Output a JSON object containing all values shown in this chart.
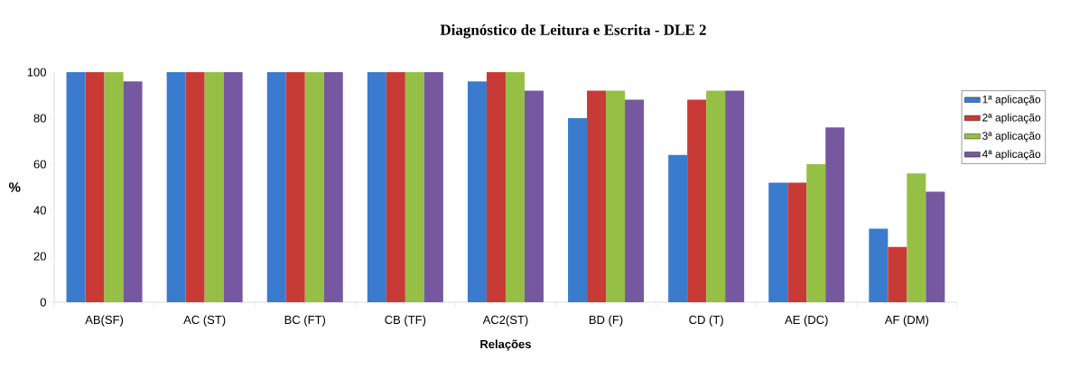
{
  "chart_data": {
    "type": "bar",
    "title": "Diagnóstico de Leitura e Escrita - DLE 2",
    "xlabel": "Relações",
    "ylabel": "%",
    "categories": [
      "AB(SF)",
      "AC (ST)",
      "BC (FT)",
      "CB (TF)",
      "AC2(ST)",
      "BD (F)",
      "CD (T)",
      "AE (DC)",
      "AF (DM)"
    ],
    "series": [
      {
        "name": "1ª aplicação",
        "color": "#3a7bcd",
        "values": [
          100,
          100,
          100,
          100,
          96,
          80,
          64,
          52,
          32
        ]
      },
      {
        "name": "2ª aplicação",
        "color": "#c83a36",
        "values": [
          100,
          100,
          100,
          100,
          100,
          92,
          88,
          52,
          24
        ]
      },
      {
        "name": "3ª aplicação",
        "color": "#95bf45",
        "values": [
          100,
          100,
          100,
          100,
          100,
          92,
          92,
          60,
          56
        ]
      },
      {
        "name": "4ª aplicação",
        "color": "#7558a0",
        "values": [
          96,
          100,
          100,
          100,
          92,
          88,
          92,
          76,
          48
        ]
      }
    ],
    "ylim": [
      0,
      100
    ],
    "yticks": [
      0,
      20,
      40,
      60,
      80,
      100
    ],
    "legend": "right"
  }
}
